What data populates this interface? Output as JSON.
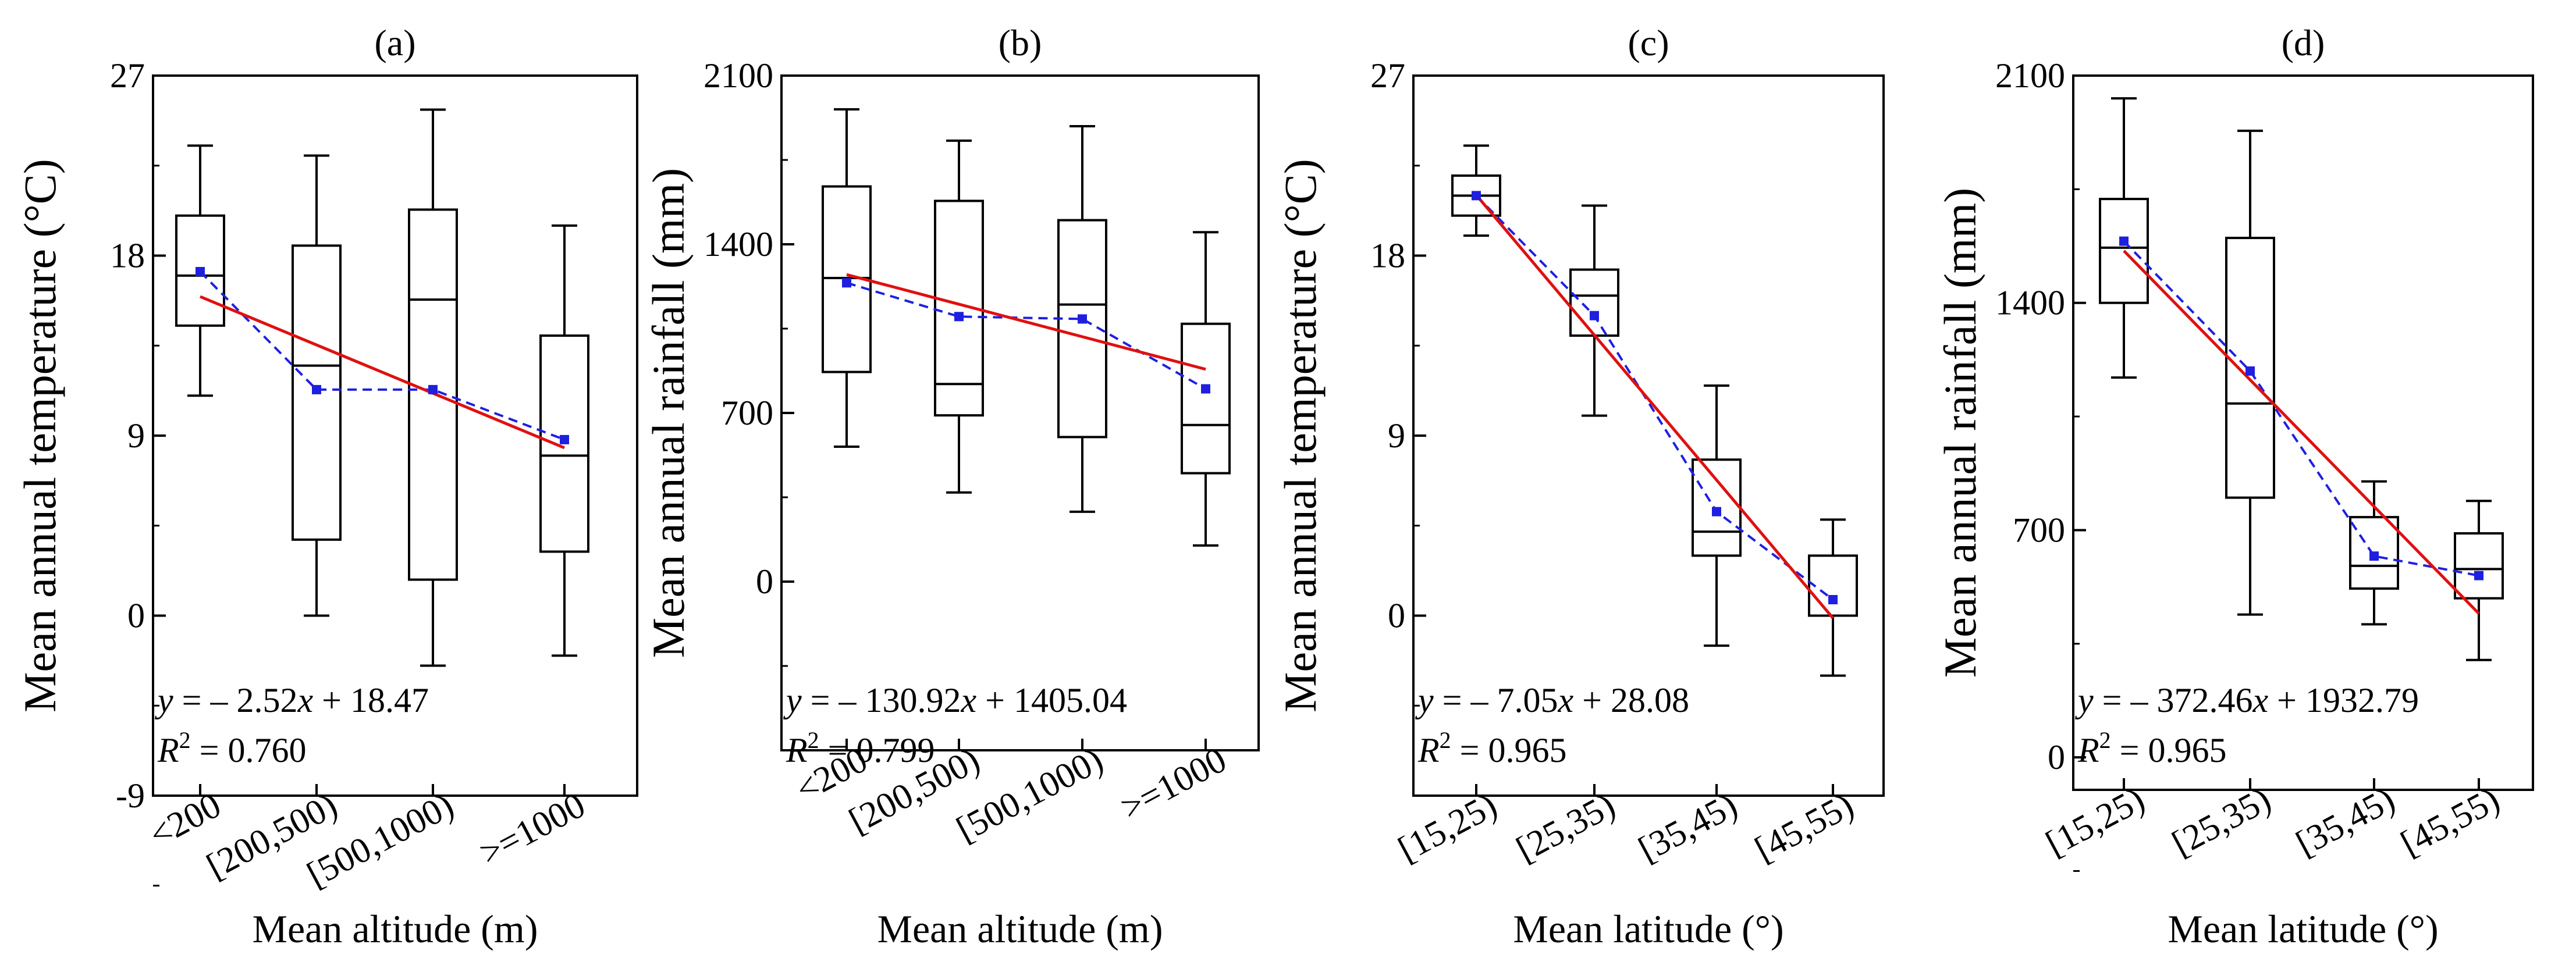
{
  "chart_data": [
    {
      "type": "box",
      "panel_label": "(a)",
      "xlabel": "Mean altitude (m)",
      "ylabel": "Mean annual temperature (°C)",
      "ylim": [
        -9,
        27
      ],
      "yticks": [
        "27",
        "18",
        "9",
        "0",
        "-9"
      ],
      "categories": [
        "<200",
        "[200,500)",
        "[500,1000)",
        ">=1000"
      ],
      "boxes": [
        {
          "whisker_low": 11,
          "q1": 14.5,
          "median": 17,
          "q3": 20,
          "whisker_high": 23.5,
          "mean": 17.2
        },
        {
          "whisker_low": 0,
          "q1": 3.8,
          "median": 12.5,
          "q3": 18.5,
          "whisker_high": 23,
          "mean": 11.3
        },
        {
          "whisker_low": -2.5,
          "q1": 1.8,
          "median": 15.8,
          "q3": 20.3,
          "whisker_high": 25.3,
          "mean": 11.3
        },
        {
          "whisker_low": -2,
          "q1": 3.2,
          "median": 8,
          "q3": 14,
          "whisker_high": 19.5,
          "mean": 8.8
        }
      ],
      "fit": {
        "slope": -2.52,
        "intercept": 18.47
      },
      "equation_prefix": "y",
      "equation_rhs": " = ‒ 2.52",
      "equation_var": "x",
      "equation_tail": " + 18.47",
      "r2_label": "R",
      "r2_value": " = 0.760",
      "legend": "none",
      "grid": false
    },
    {
      "type": "box",
      "panel_label": "(b)",
      "xlabel": "Mean altitude (m)",
      "ylabel": "Mean annual rainfall (mm)",
      "ylim": [
        -700,
        2100
      ],
      "yticks": [
        "2100",
        "1400",
        "700",
        "0"
      ],
      "categories": [
        "<200",
        "[200,500)",
        "[500,1000)",
        ">=1000"
      ],
      "boxes": [
        {
          "whisker_low": 560,
          "q1": 870,
          "median": 1260,
          "q3": 1640,
          "whisker_high": 1960,
          "mean": 1240
        },
        {
          "whisker_low": 370,
          "q1": 690,
          "median": 820,
          "q3": 1580,
          "whisker_high": 1830,
          "mean": 1100
        },
        {
          "whisker_low": 290,
          "q1": 600,
          "median": 1150,
          "q3": 1500,
          "whisker_high": 1890,
          "mean": 1090
        },
        {
          "whisker_low": 150,
          "q1": 450,
          "median": 650,
          "q3": 1070,
          "whisker_high": 1450,
          "mean": 800
        }
      ],
      "fit": {
        "slope": -130.92,
        "intercept": 1405.04
      },
      "equation_prefix": "y",
      "equation_rhs": " = ‒ 130.92",
      "equation_var": "x",
      "equation_tail": " + 1405.04",
      "r2_label": "R",
      "r2_value": " = 0.799",
      "legend": "none",
      "grid": false
    },
    {
      "type": "box",
      "panel_label": "(c)",
      "xlabel": "Mean latitude (°)",
      "ylabel": "Mean annual temperature (°C)",
      "ylim": [
        -9,
        27
      ],
      "yticks": [
        "27",
        "18",
        "9",
        "0"
      ],
      "categories": [
        "[15,25)",
        "[25,35)",
        "[35,45)",
        "[45,55)"
      ],
      "boxes": [
        {
          "whisker_low": 19,
          "q1": 20,
          "median": 21,
          "q3": 22,
          "whisker_high": 23.5,
          "mean": 21
        },
        {
          "whisker_low": 10,
          "q1": 14,
          "median": 16,
          "q3": 17.3,
          "whisker_high": 20.5,
          "mean": 15
        },
        {
          "whisker_low": -1.5,
          "q1": 3,
          "median": 4.2,
          "q3": 7.8,
          "whisker_high": 11.5,
          "mean": 5.2
        },
        {
          "whisker_low": -3,
          "q1": 0,
          "median": 0,
          "q3": 3,
          "whisker_high": 4.8,
          "mean": 0.8
        }
      ],
      "fit": {
        "slope": -7.05,
        "intercept": 28.08
      },
      "equation_prefix": "y",
      "equation_rhs": " = ‒ 7.05",
      "equation_var": "x",
      "equation_tail": " + 28.08",
      "r2_label": "R",
      "r2_value": " = 0.965",
      "legend": "none",
      "grid": false
    },
    {
      "type": "box",
      "panel_label": "(d)",
      "xlabel": "Mean latitude (°)",
      "ylabel": "Mean annual rainfall (mm)",
      "ylim": [
        -100,
        2100
      ],
      "yticks": [
        "2100",
        "1400",
        "700",
        "0"
      ],
      "categories": [
        "[15,25)",
        "[25,35)",
        "[35,45)",
        "[45,55)"
      ],
      "boxes": [
        {
          "whisker_low": 1170,
          "q1": 1400,
          "median": 1570,
          "q3": 1720,
          "whisker_high": 2030,
          "mean": 1590
        },
        {
          "whisker_low": 440,
          "q1": 800,
          "median": 1090,
          "q3": 1600,
          "whisker_high": 1930,
          "mean": 1190
        },
        {
          "whisker_low": 410,
          "q1": 520,
          "median": 590,
          "q3": 740,
          "whisker_high": 850,
          "mean": 620
        },
        {
          "whisker_low": 300,
          "q1": 490,
          "median": 580,
          "q3": 690,
          "whisker_high": 790,
          "mean": 560
        }
      ],
      "fit": {
        "slope": -372.46,
        "intercept": 1932.79
      },
      "equation_prefix": "y",
      "equation_rhs": " = ‒ 372.46",
      "equation_var": "x",
      "equation_tail": " + 1932.79",
      "r2_label": "R",
      "r2_value": " = 0.965",
      "legend": "none",
      "grid": false
    }
  ],
  "colors": {
    "box": "#000000",
    "mean_marker": "#1f1fe0",
    "mean_line": "#1f1fe0",
    "fit_line": "#e01010"
  }
}
